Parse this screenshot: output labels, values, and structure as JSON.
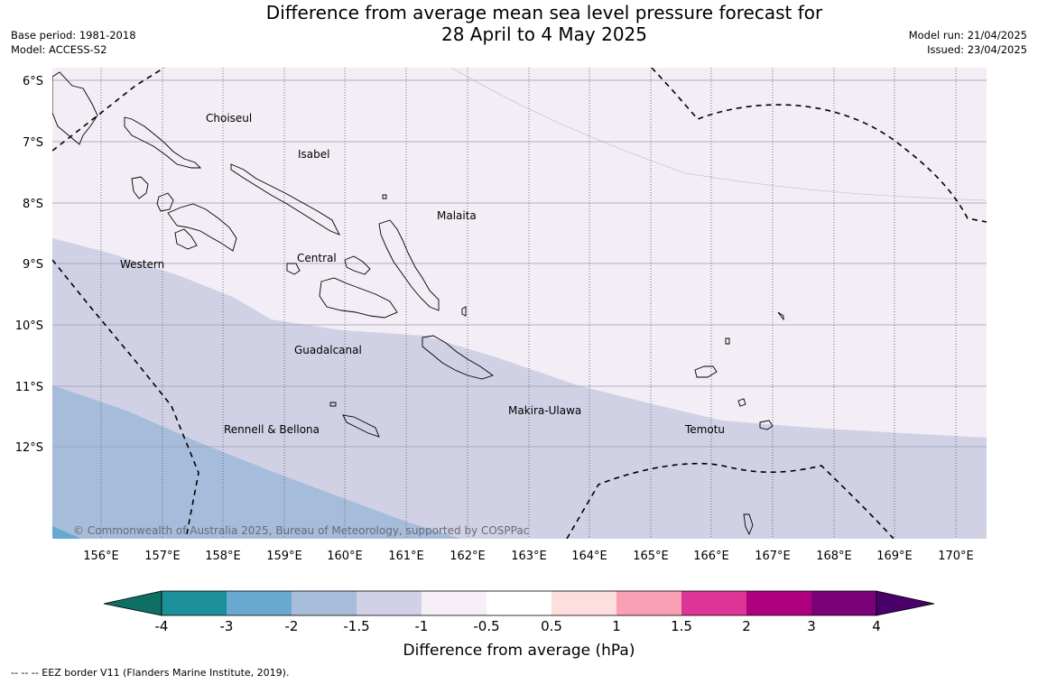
{
  "header": {
    "title_line1": "Difference from average mean sea level pressure forecast for",
    "title_line2": "28 April to 4 May 2025",
    "base_period": "Base period: 1981-2018",
    "model": "Model: ACCESS-S2",
    "model_run": "Model run: 21/04/2025",
    "issued": "Issued: 23/04/2025"
  },
  "map": {
    "lat_labels": [
      "6°S",
      "7°S",
      "8°S",
      "9°S",
      "10°S",
      "11°S",
      "12°S"
    ],
    "lon_labels": [
      "156°E",
      "157°E",
      "158°E",
      "159°E",
      "160°E",
      "161°E",
      "162°E",
      "163°E",
      "164°E",
      "165°E",
      "166°E",
      "167°E",
      "168°E",
      "169°E",
      "170°E"
    ],
    "regions": [
      "Choiseul",
      "Isabel",
      "Malaita",
      "Western",
      "Central",
      "Guadalcanal",
      "Makira-Ulawa",
      "Rennell & Bellona",
      "Temotu"
    ],
    "copyright": "© Commonwealth of Australia 2025, Bureau of Meteorology, supported by COSPPac",
    "fill_colors": {
      "band_-1_-0.5": "#f3edf5",
      "band_-1.5_-1": "#d0d1e5",
      "band_-2_-1.5": "#a6bcdb",
      "band_-3_-2": "#67a8d0"
    }
  },
  "legend": {
    "title": "Difference from average (hPa)",
    "tick_labels": [
      "-4",
      "-3",
      "-2",
      "-1.5",
      "-1",
      "-0.5",
      "0.5",
      "1",
      "1.5",
      "2",
      "3",
      "4"
    ],
    "colors": [
      "#0e6f64",
      "#1c9099",
      "#67a9cf",
      "#a6bddb",
      "#d0d1e6",
      "#f6eff7",
      "#ffffff",
      "#fde0dd",
      "#fa9fb5",
      "#dd3497",
      "#ae017e",
      "#7a0177",
      "#49006a"
    ]
  },
  "footnote": "--  --  -- EEZ border V11 (Flanders Marine Institute, 2019)."
}
